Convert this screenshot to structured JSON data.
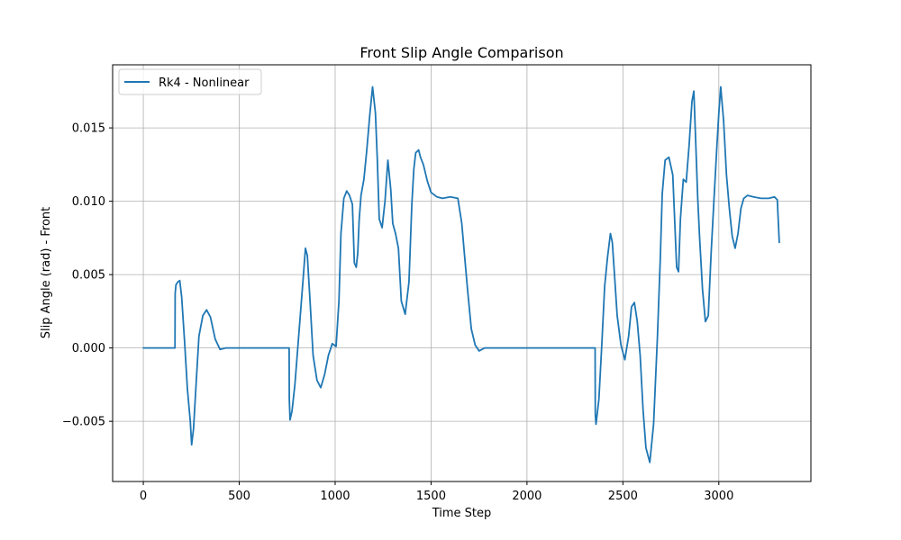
{
  "chart_data": {
    "type": "line",
    "title": "Front Slip Angle Comparison",
    "xlabel": "Time Step",
    "ylabel": "Slip Angle (rad) - Front",
    "xlim": [
      -160,
      3480
    ],
    "ylim": [
      -0.0091,
      0.0193
    ],
    "xticks": [
      0,
      500,
      1000,
      1500,
      2000,
      2500,
      3000
    ],
    "xtick_labels": [
      "0",
      "500",
      "1000",
      "1500",
      "2000",
      "2500",
      "3000"
    ],
    "yticks": [
      -0.005,
      0.0,
      0.005,
      0.01,
      0.015
    ],
    "ytick_labels": [
      "−0.005",
      "0.000",
      "0.005",
      "0.010",
      "0.015"
    ],
    "grid": true,
    "legend_position": "top-left",
    "series": [
      {
        "name": "Rk4 - Nonlinear",
        "color": "#1f77b4",
        "x": [
          0,
          165,
          166,
          170,
          180,
          190,
          200,
          215,
          230,
          245,
          252,
          262,
          275,
          290,
          310,
          330,
          350,
          375,
          400,
          430,
          460,
          500,
          600,
          700,
          760,
          761,
          765,
          775,
          790,
          810,
          830,
          845,
          855,
          870,
          885,
          905,
          925,
          945,
          965,
          985,
          1005,
          1020,
          1030,
          1045,
          1060,
          1075,
          1090,
          1100,
          1110,
          1118,
          1125,
          1135,
          1150,
          1165,
          1180,
          1195,
          1210,
          1220,
          1230,
          1245,
          1260,
          1275,
          1290,
          1300,
          1315,
          1330,
          1345,
          1365,
          1385,
          1400,
          1410,
          1420,
          1435,
          1445,
          1460,
          1480,
          1500,
          1530,
          1560,
          1600,
          1640,
          1660,
          1670,
          1690,
          1710,
          1730,
          1750,
          1780,
          1850,
          2000,
          2200,
          2355,
          2356,
          2360,
          2375,
          2390,
          2405,
          2420,
          2435,
          2445,
          2455,
          2470,
          2490,
          2510,
          2530,
          2545,
          2560,
          2575,
          2590,
          2605,
          2620,
          2640,
          2660,
          2680,
          2695,
          2705,
          2720,
          2740,
          2760,
          2780,
          2790,
          2800,
          2815,
          2830,
          2845,
          2860,
          2870,
          2880,
          2890,
          2900,
          2915,
          2930,
          2945,
          2960,
          2975,
          2990,
          3000,
          3010,
          3025,
          3040,
          3055,
          3070,
          3085,
          3100,
          3115,
          3130,
          3150,
          3180,
          3220,
          3260,
          3290,
          3305,
          3315
        ],
        "values": [
          0.0,
          0.0,
          0.0037,
          0.0043,
          0.0045,
          0.0046,
          0.0035,
          0.0005,
          -0.0028,
          -0.005,
          -0.0066,
          -0.0055,
          -0.0025,
          0.0008,
          0.0022,
          0.0026,
          0.0021,
          0.0006,
          -0.0001,
          0.0,
          0.0,
          0.0,
          0.0,
          0.0,
          0.0,
          -0.0035,
          -0.0049,
          -0.0043,
          -0.0025,
          0.0008,
          0.0042,
          0.0068,
          0.0063,
          0.003,
          -0.0005,
          -0.0022,
          -0.0027,
          -0.0018,
          -0.0005,
          0.0003,
          0.0001,
          0.0032,
          0.0078,
          0.0102,
          0.0107,
          0.0104,
          0.0098,
          0.0058,
          0.0055,
          0.0065,
          0.0087,
          0.0104,
          0.0115,
          0.0135,
          0.0158,
          0.0178,
          0.016,
          0.0128,
          0.0088,
          0.0082,
          0.01,
          0.0128,
          0.0108,
          0.0085,
          0.0078,
          0.0068,
          0.0032,
          0.0023,
          0.0045,
          0.0098,
          0.0122,
          0.0133,
          0.0135,
          0.013,
          0.0125,
          0.0114,
          0.0106,
          0.0103,
          0.0102,
          0.0103,
          0.0102,
          0.0085,
          0.007,
          0.004,
          0.0013,
          0.0002,
          -0.0002,
          0.0,
          0.0,
          0.0,
          0.0,
          0.0,
          -0.0045,
          -0.0052,
          -0.0035,
          0.0002,
          0.0042,
          0.0062,
          0.0078,
          0.0072,
          0.0052,
          0.0022,
          0.0002,
          -0.0008,
          0.0008,
          0.0028,
          0.0031,
          0.0018,
          -0.0005,
          -0.0042,
          -0.0068,
          -0.0078,
          -0.0052,
          0.0008,
          0.0062,
          0.0105,
          0.0128,
          0.013,
          0.0118,
          0.0055,
          0.0052,
          0.0088,
          0.0115,
          0.0113,
          0.0138,
          0.0168,
          0.0175,
          0.0138,
          0.0102,
          0.0075,
          0.004,
          0.0018,
          0.0022,
          0.0065,
          0.0102,
          0.0138,
          0.016,
          0.0178,
          0.0155,
          0.0118,
          0.0095,
          0.0076,
          0.0068,
          0.0078,
          0.0095,
          0.0102,
          0.0104,
          0.0103,
          0.0102,
          0.0102,
          0.0103,
          0.0101,
          0.0072
        ]
      }
    ]
  }
}
